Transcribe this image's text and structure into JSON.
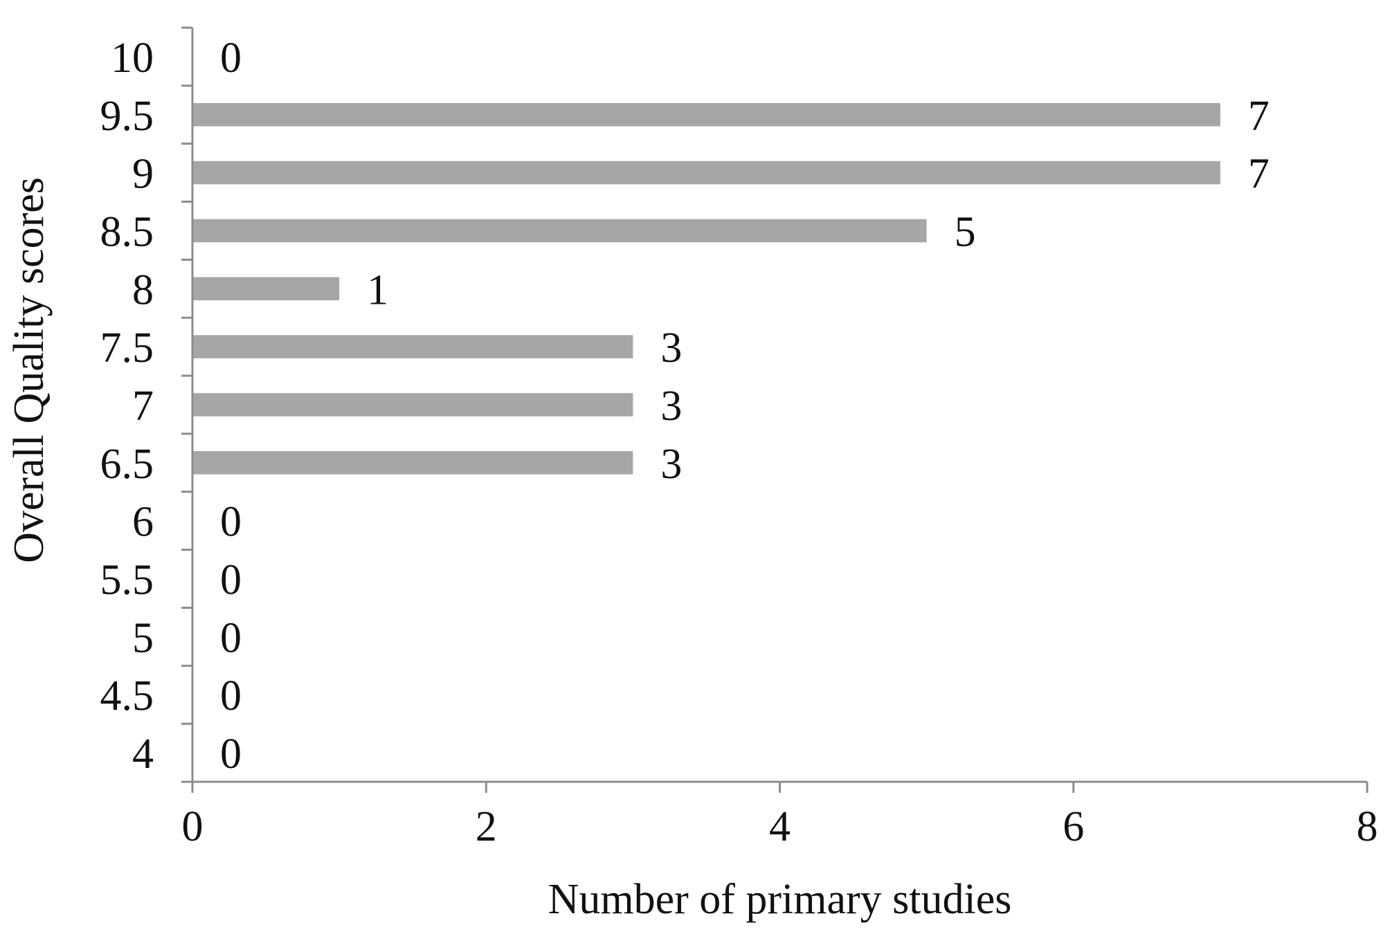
{
  "chart_data": {
    "type": "bar",
    "orientation": "horizontal",
    "categories": [
      "10",
      "9.5",
      "9",
      "8.5",
      "8",
      "7.5",
      "7",
      "6.5",
      "6",
      "5.5",
      "5",
      "4.5",
      "4"
    ],
    "values": [
      0,
      7,
      7,
      5,
      1,
      3,
      3,
      3,
      0,
      0,
      0,
      0,
      0
    ],
    "data_labels": [
      "0",
      "7",
      "7",
      "5",
      "1",
      "3",
      "3",
      "3",
      "0",
      "0",
      "0",
      "0",
      "0"
    ],
    "x_ticks": [
      "0",
      "2",
      "4",
      "6",
      "8"
    ],
    "xlim": [
      0,
      8
    ],
    "xlabel": "Number of primary studies",
    "ylabel": "Overall Quality scores",
    "title": "",
    "grid": false,
    "legend": "none",
    "bar_color": "#a6a6a6",
    "axis_color": "#8c8c8c"
  }
}
